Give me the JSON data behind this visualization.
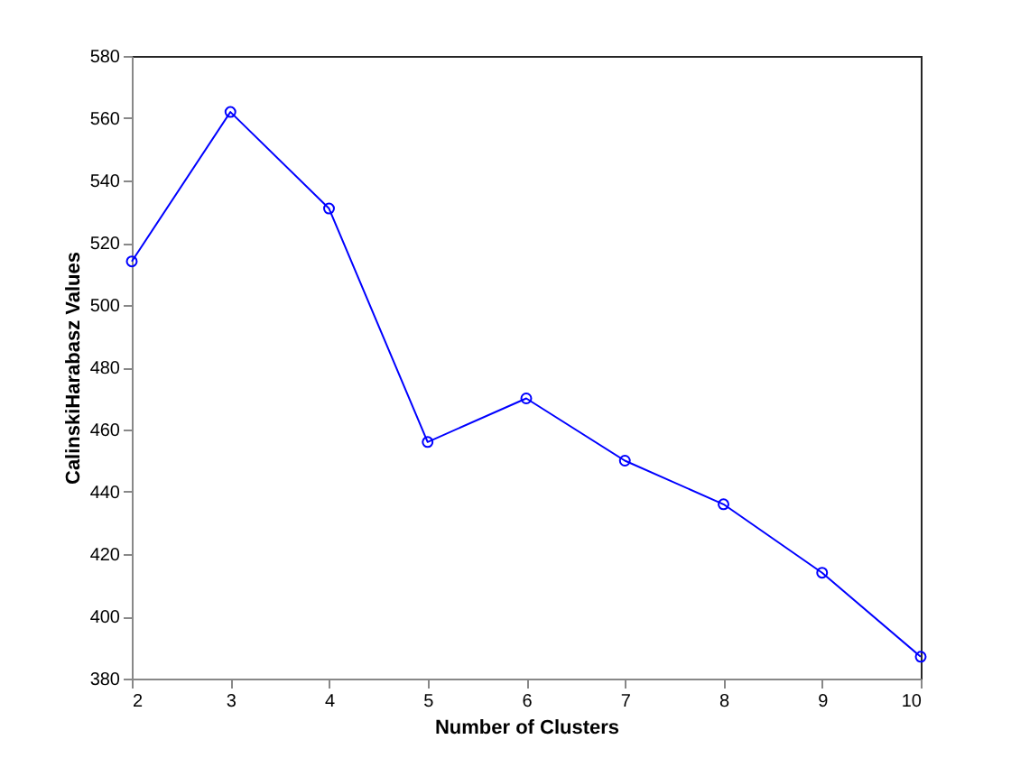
{
  "chart_data": {
    "type": "line",
    "xlabel": "Number of Clusters",
    "ylabel": "CalinskiHarabasz Values",
    "x": [
      2,
      3,
      4,
      5,
      6,
      7,
      8,
      9,
      10
    ],
    "series": [
      {
        "color": "#0000ff",
        "values": [
          514,
          562,
          531,
          456,
          470,
          450,
          436,
          414,
          387
        ]
      }
    ],
    "xlim": [
      2,
      10
    ],
    "xticks": [
      2,
      3,
      4,
      5,
      6,
      7,
      8,
      9,
      10
    ],
    "ylim": [
      380,
      580
    ],
    "yticks": [
      380,
      400,
      420,
      440,
      460,
      480,
      500,
      520,
      540,
      560,
      580
    ],
    "grid": false,
    "marker": "circle",
    "line_style": "solid"
  }
}
